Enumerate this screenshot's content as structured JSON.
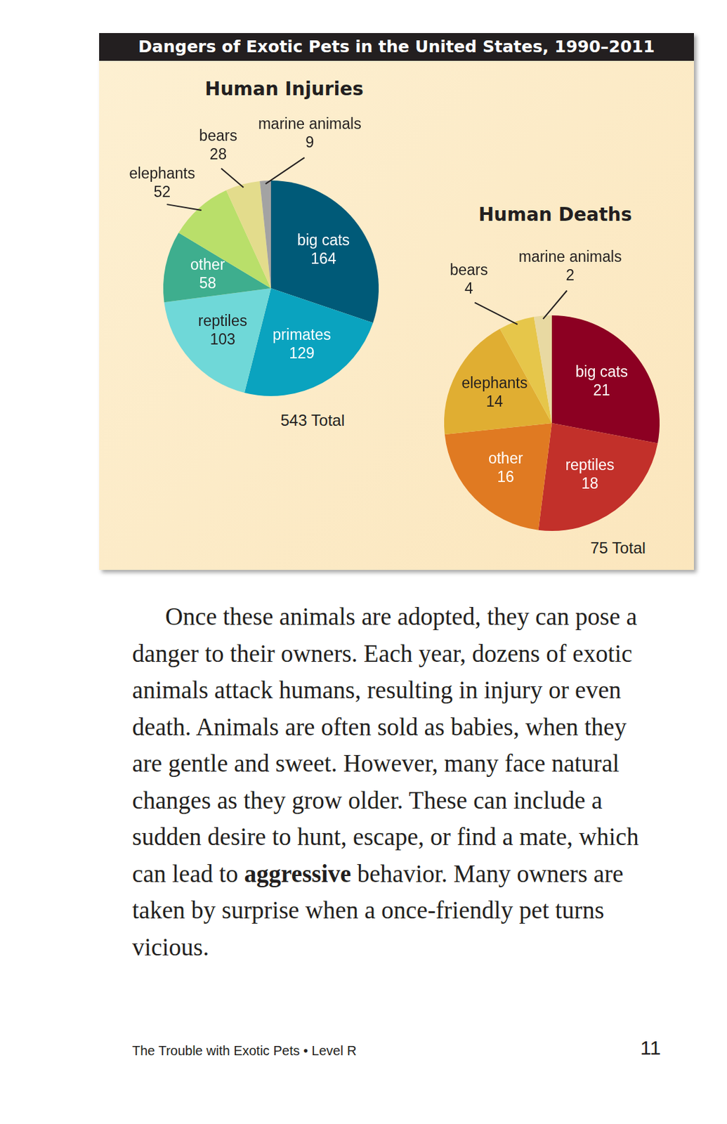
{
  "title": "Dangers of Exotic Pets in the United States, 1990–2011",
  "chart_data": [
    {
      "type": "pie",
      "title": "Human Injuries",
      "categories": [
        "big cats",
        "primates",
        "reptiles",
        "other",
        "elephants",
        "bears",
        "marine animals"
      ],
      "values": [
        164,
        129,
        103,
        58,
        52,
        28,
        9
      ],
      "colors": [
        "#005a78",
        "#0aa3bf",
        "#6fd8d8",
        "#3eae8e",
        "#b9df6a",
        "#e3dc8c",
        "#a3a3a3"
      ],
      "data_labels": true,
      "annotation": "543 Total"
    },
    {
      "type": "pie",
      "title": "Human Deaths",
      "categories": [
        "big cats",
        "reptiles",
        "other",
        "elephants",
        "bears",
        "marine animals"
      ],
      "values": [
        21,
        18,
        16,
        14,
        4,
        2
      ],
      "colors": [
        "#8c0022",
        "#c2302a",
        "#e07a22",
        "#e0ae32",
        "#e6c64a",
        "#e8d9a2"
      ],
      "data_labels": true,
      "annotation": "75 Total"
    }
  ],
  "body": [
    {
      "text": "Once these animals are adopted, they can pose a danger to their owners. Each year, dozens of exotic animals attack humans, resulting in injury or even death. Animals are often sold as babies, when they are gentle and sweet. However, many face natural changes as they grow older. These can include a sudden desire to hunt, escape, or find a mate, which can lead to ",
      "bold": false
    },
    {
      "text": "aggressive",
      "bold": true
    },
    {
      "text": " behavior. Many owners are taken by surprise when a once-friendly pet turns vicious.",
      "bold": false
    }
  ],
  "footer": {
    "text": "The Trouble with Exotic Pets • Level R",
    "page": "11"
  }
}
